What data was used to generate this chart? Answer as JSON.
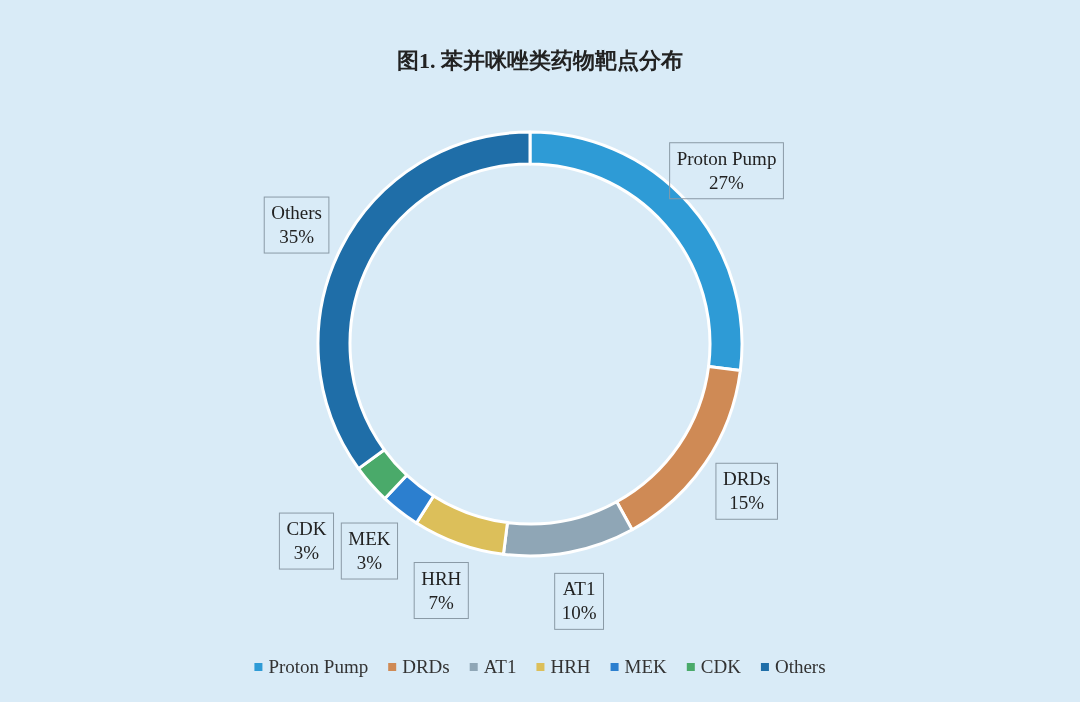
{
  "chart_data": {
    "type": "donut",
    "title": "图1. 苯并咪唑类药物靶点分布",
    "categories": [
      "Proton Pump",
      "DRDs",
      "AT1",
      "HRH",
      "MEK",
      "CDK",
      "Others"
    ],
    "values": [
      27,
      15,
      10,
      7,
      3,
      3,
      35
    ],
    "value_labels": [
      "27%",
      "15%",
      "10%",
      "7%",
      "3%",
      "3%",
      "35%"
    ],
    "colors": [
      "#2e9bd6",
      "#cf8a55",
      "#8fa6b6",
      "#dcbf5a",
      "#2c7fcf",
      "#4aaa6a",
      "#1f6ea8"
    ],
    "legend": "bottom"
  }
}
